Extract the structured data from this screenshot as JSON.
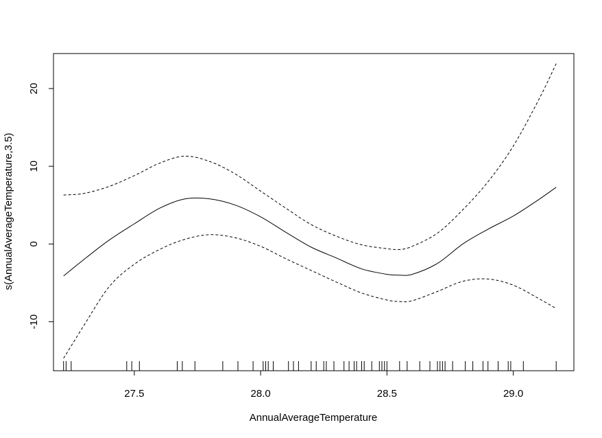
{
  "chart_data": {
    "type": "line",
    "title": "",
    "xlabel": "AnnualAverageTemperature",
    "ylabel": "s(AnnualAverageTemperature,3.5)",
    "xlim": [
      27.18,
      29.24
    ],
    "ylim": [
      -16.3,
      24.5
    ],
    "xticks": [
      27.5,
      28.0,
      28.5,
      29.0
    ],
    "xtick_labels": [
      "27.5",
      "28.0",
      "28.5",
      "29.0"
    ],
    "yticks": [
      -10,
      0,
      10,
      20
    ],
    "ytick_labels": [
      "-10",
      "0",
      "10",
      "20"
    ],
    "grid": false,
    "series": [
      {
        "style": "solid",
        "x": [
          27.22,
          27.3,
          27.4,
          27.5,
          27.6,
          27.7,
          27.8,
          27.9,
          28.0,
          28.1,
          28.2,
          28.3,
          28.4,
          28.5,
          28.55,
          28.6,
          28.7,
          28.8,
          28.9,
          29.0,
          29.1,
          29.17
        ],
        "y": [
          -4.1,
          -2.0,
          0.5,
          2.6,
          4.6,
          5.8,
          5.8,
          5.0,
          3.5,
          1.5,
          -0.4,
          -1.8,
          -3.2,
          -3.9,
          -4.0,
          -3.9,
          -2.5,
          0.0,
          1.9,
          3.6,
          5.7,
          7.3
        ]
      },
      {
        "style": "dashed",
        "x": [
          27.22,
          27.3,
          27.4,
          27.5,
          27.6,
          27.7,
          27.8,
          27.9,
          28.0,
          28.1,
          28.2,
          28.3,
          28.4,
          28.5,
          28.55,
          28.6,
          28.7,
          28.8,
          28.9,
          29.0,
          29.1,
          29.17
        ],
        "y": [
          6.3,
          6.5,
          7.4,
          8.8,
          10.4,
          11.3,
          10.6,
          9.0,
          6.8,
          4.6,
          2.5,
          1.0,
          -0.1,
          -0.6,
          -0.7,
          -0.3,
          1.4,
          4.4,
          8.0,
          12.6,
          18.5,
          23.2
        ]
      },
      {
        "style": "dashed",
        "x": [
          27.22,
          27.3,
          27.4,
          27.5,
          27.6,
          27.7,
          27.8,
          27.9,
          28.0,
          28.1,
          28.2,
          28.3,
          28.4,
          28.5,
          28.55,
          28.6,
          28.7,
          28.8,
          28.9,
          29.0,
          29.1,
          29.17
        ],
        "y": [
          -14.7,
          -10.5,
          -5.5,
          -2.6,
          -0.7,
          0.6,
          1.2,
          0.8,
          -0.3,
          -1.9,
          -3.4,
          -4.9,
          -6.3,
          -7.2,
          -7.4,
          -7.3,
          -6.1,
          -4.8,
          -4.5,
          -5.3,
          -7.0,
          -8.3
        ]
      }
    ],
    "rug": [
      27.22,
      27.23,
      27.25,
      27.47,
      27.49,
      27.52,
      27.67,
      27.69,
      27.74,
      27.85,
      27.91,
      27.97,
      28.01,
      28.02,
      28.03,
      28.05,
      28.11,
      28.13,
      28.15,
      28.2,
      28.22,
      28.25,
      28.26,
      28.29,
      28.33,
      28.35,
      28.37,
      28.38,
      28.4,
      28.41,
      28.44,
      28.47,
      28.48,
      28.49,
      28.5,
      28.55,
      28.58,
      28.63,
      28.67,
      28.7,
      28.71,
      28.72,
      28.73,
      28.76,
      28.81,
      28.84,
      28.88,
      28.9,
      28.94,
      28.98,
      28.99,
      29.04,
      29.17
    ]
  }
}
